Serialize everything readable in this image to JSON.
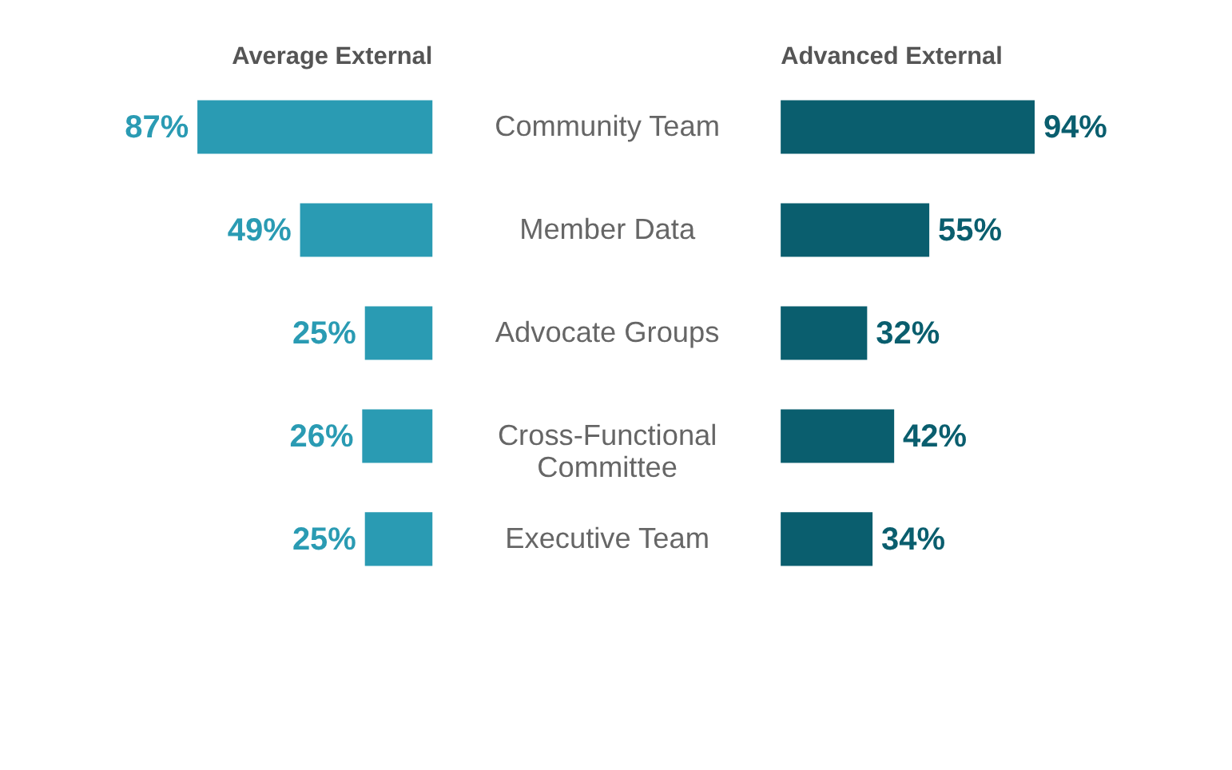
{
  "chart_data": [
    {
      "type": "bar",
      "orientation": "horizontal",
      "title": "Average External",
      "categories": [
        "Community Team",
        "Member Data",
        "Advocate Groups",
        "Cross-Functional Committee",
        "Executive Team"
      ],
      "tick_labels": "y",
      "color": "#2a9bb3",
      "values": [
        87,
        49,
        25,
        26,
        25
      ],
      "value_labels": [
        "87%",
        "49%",
        "25%",
        "26%",
        "25%"
      ]
    },
    {
      "type": "bar",
      "orientation": "horizontal",
      "title": "Advanced External",
      "categories": [
        null,
        null,
        null,
        null,
        null
      ],
      "tick_labels": false,
      "color": "#0a5e6e",
      "values": [
        94,
        55,
        32,
        42,
        34
      ],
      "value_labels": [
        "94%",
        "55%",
        "32%",
        "42%",
        "34%"
      ]
    }
  ]
}
